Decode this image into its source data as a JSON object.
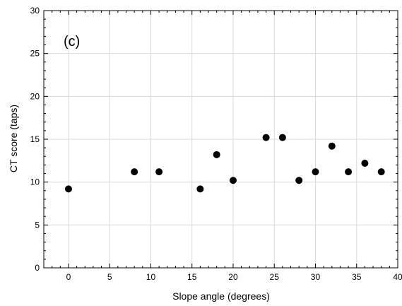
{
  "chart_data": {
    "type": "scatter",
    "title": "",
    "panel_label": "(c)",
    "xlabel": "Slope angle (degrees)",
    "ylabel": "CT score (taps)",
    "xlim": [
      -3,
      40
    ],
    "ylim": [
      0,
      30
    ],
    "x_ticks": [
      0,
      5,
      10,
      15,
      20,
      25,
      30,
      35,
      40
    ],
    "y_ticks": [
      0,
      5,
      10,
      15,
      20,
      25,
      30
    ],
    "grid": true,
    "legend": "none",
    "marker_color": "#000000",
    "series": [
      {
        "points": [
          {
            "x": 0,
            "y": 9.2
          },
          {
            "x": 8,
            "y": 11.2
          },
          {
            "x": 11,
            "y": 11.2
          },
          {
            "x": 16,
            "y": 9.2
          },
          {
            "x": 18,
            "y": 13.2
          },
          {
            "x": 20,
            "y": 10.2
          },
          {
            "x": 24,
            "y": 15.2
          },
          {
            "x": 26,
            "y": 15.2
          },
          {
            "x": 28,
            "y": 10.2
          },
          {
            "x": 30,
            "y": 11.2
          },
          {
            "x": 32,
            "y": 14.2
          },
          {
            "x": 34,
            "y": 11.2
          },
          {
            "x": 36,
            "y": 12.2
          },
          {
            "x": 38,
            "y": 11.2
          }
        ]
      }
    ]
  }
}
